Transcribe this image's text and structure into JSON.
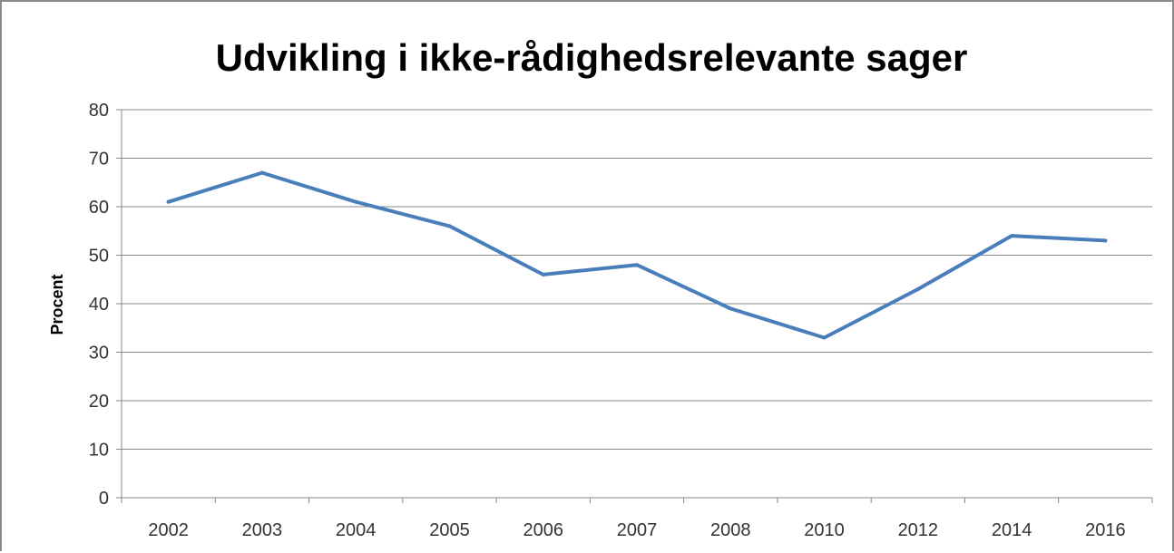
{
  "chart_data": {
    "type": "line",
    "title": "Udvikling i ikke-rådighedsrelevante sager",
    "xlabel": "",
    "ylabel": "Procent",
    "categories": [
      "2002",
      "2003",
      "2004",
      "2005",
      "2006",
      "2007",
      "2008",
      "2010",
      "2012",
      "2014",
      "2016"
    ],
    "series": [
      {
        "values": [
          61,
          67,
          61,
          56,
          46,
          48,
          39,
          33,
          43,
          54,
          53
        ]
      }
    ],
    "ylim": [
      0,
      80
    ],
    "yticks": [
      "0",
      "10",
      "20",
      "30",
      "40",
      "50",
      "60",
      "70",
      "80"
    ],
    "grid": true,
    "legend": "none",
    "line_color": "#4a7ebb",
    "grid_color": "#888888"
  }
}
